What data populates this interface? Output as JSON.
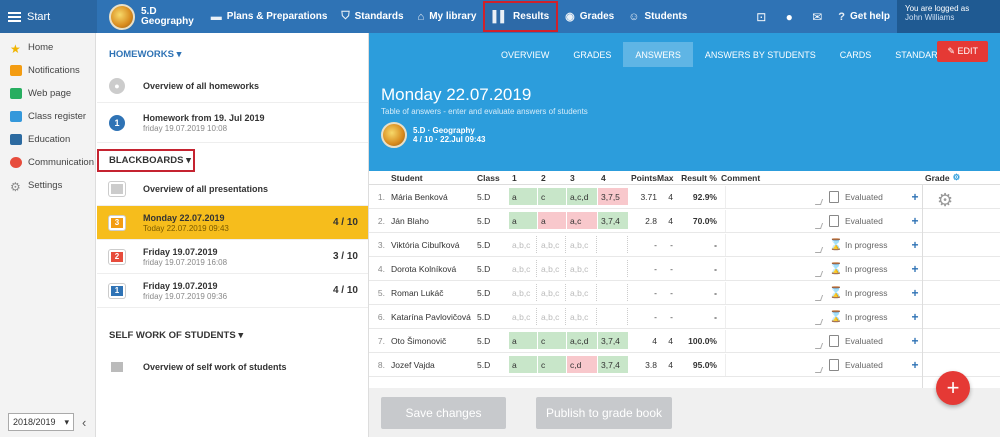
{
  "topbar": {
    "start": "Start",
    "class_code": "5.D",
    "class_subject": "Geography",
    "items": [
      "Plans & Preparations",
      "Standards",
      "My library",
      "Results",
      "Grades",
      "Students"
    ],
    "help": "Get help",
    "logged_as": "You are logged as",
    "user": "John Williams"
  },
  "sidebar": {
    "items": [
      "Home",
      "Notifications",
      "Web page",
      "Class register",
      "Education",
      "Communication",
      "Settings"
    ],
    "year": "2018/2019"
  },
  "middle": {
    "homeworks_head": "HOMEWORKS",
    "hw_overview": "Overview of all homeworks",
    "hw1_title": "Homework from 19. Jul 2019",
    "hw1_sub": "friday 19.07.2019 10:08",
    "blackboards_head": "BLACKBOARDS",
    "bb_overview": "Overview of all presentations",
    "bb": [
      {
        "num": "3",
        "title": "Monday 22.07.2019",
        "sub": "Today 22.07.2019 09:43",
        "count": "4 / 10"
      },
      {
        "num": "2",
        "title": "Friday 19.07.2019",
        "sub": "friday 19.07.2019 16:08",
        "count": "3 / 10"
      },
      {
        "num": "1",
        "title": "Friday 19.07.2019",
        "sub": "friday 19.07.2019 09:36",
        "count": "4 / 10"
      }
    ],
    "self_head": "SELF WORK OF STUDENTS",
    "self_overview": "Overview of self work of students"
  },
  "tabs": [
    "OVERVIEW",
    "GRADES",
    "ANSWERS",
    "ANSWERS BY STUDENTS",
    "CARDS",
    "STANDARDS"
  ],
  "edit": "EDIT",
  "hero": {
    "title": "Monday 22.07.2019",
    "desc": "Table of answers - enter and evaluate answers of students",
    "cls": "5.D · Geography",
    "cls_sub": "4 / 10 · 22.Jul 09:43"
  },
  "table": {
    "headers": [
      "Student",
      "Class",
      "1",
      "2",
      "3",
      "4",
      "Points",
      "Max",
      "Result %",
      "Comment",
      "Grade"
    ],
    "rows": [
      {
        "no": "1.",
        "name": "Mária Benková",
        "cls": "5.D",
        "a": [
          "a",
          "c",
          "a,c,d",
          "3,7,5"
        ],
        "st": [
          "ok",
          "ok",
          "ok",
          "bad"
        ],
        "pts": "3.71",
        "max": "4",
        "res": "92.9%",
        "status": "Evaluated"
      },
      {
        "no": "2.",
        "name": "Ján Blaho",
        "cls": "5.D",
        "a": [
          "a",
          "a",
          "a,c",
          "3,7,4"
        ],
        "st": [
          "ok",
          "bad",
          "bad",
          "ok"
        ],
        "pts": "2.8",
        "max": "4",
        "res": "70.0%",
        "status": "Evaluated"
      },
      {
        "no": "3.",
        "name": "Viktória Cibuľková",
        "cls": "5.D",
        "a": [
          "a,b,c",
          "a,b,c",
          "a,b,c",
          ""
        ],
        "st": [
          "na",
          "na",
          "na",
          "na"
        ],
        "pts": "-",
        "max": "-",
        "res": "-",
        "status": "In progress"
      },
      {
        "no": "4.",
        "name": "Dorota Kolníková",
        "cls": "5.D",
        "a": [
          "a,b,c",
          "a,b,c",
          "a,b,c",
          ""
        ],
        "st": [
          "na",
          "na",
          "na",
          "na"
        ],
        "pts": "-",
        "max": "-",
        "res": "-",
        "status": "In progress"
      },
      {
        "no": "5.",
        "name": "Roman Lukáč",
        "cls": "5.D",
        "a": [
          "a,b,c",
          "a,b,c",
          "a,b,c",
          ""
        ],
        "st": [
          "na",
          "na",
          "na",
          "na"
        ],
        "pts": "-",
        "max": "-",
        "res": "-",
        "status": "In progress"
      },
      {
        "no": "6.",
        "name": "Katarína Pavlovičová",
        "cls": "5.D",
        "a": [
          "a,b,c",
          "a,b,c",
          "a,b,c",
          ""
        ],
        "st": [
          "na",
          "na",
          "na",
          "na"
        ],
        "pts": "-",
        "max": "-",
        "res": "-",
        "status": "In progress"
      },
      {
        "no": "7.",
        "name": "Oto Šimonovič",
        "cls": "5.D",
        "a": [
          "a",
          "c",
          "a,c,d",
          "3,7,4"
        ],
        "st": [
          "ok",
          "ok",
          "ok",
          "ok"
        ],
        "pts": "4",
        "max": "4",
        "res": "100.0%",
        "status": "Evaluated"
      },
      {
        "no": "8.",
        "name": "Jozef Vajda",
        "cls": "5.D",
        "a": [
          "a",
          "c",
          "c,d",
          "3,7,4"
        ],
        "st": [
          "ok",
          "ok",
          "bad",
          "ok"
        ],
        "pts": "3.8",
        "max": "4",
        "res": "95.0%",
        "status": "Evaluated"
      }
    ]
  },
  "footer": {
    "save": "Save changes",
    "publish": "Publish to grade book"
  }
}
